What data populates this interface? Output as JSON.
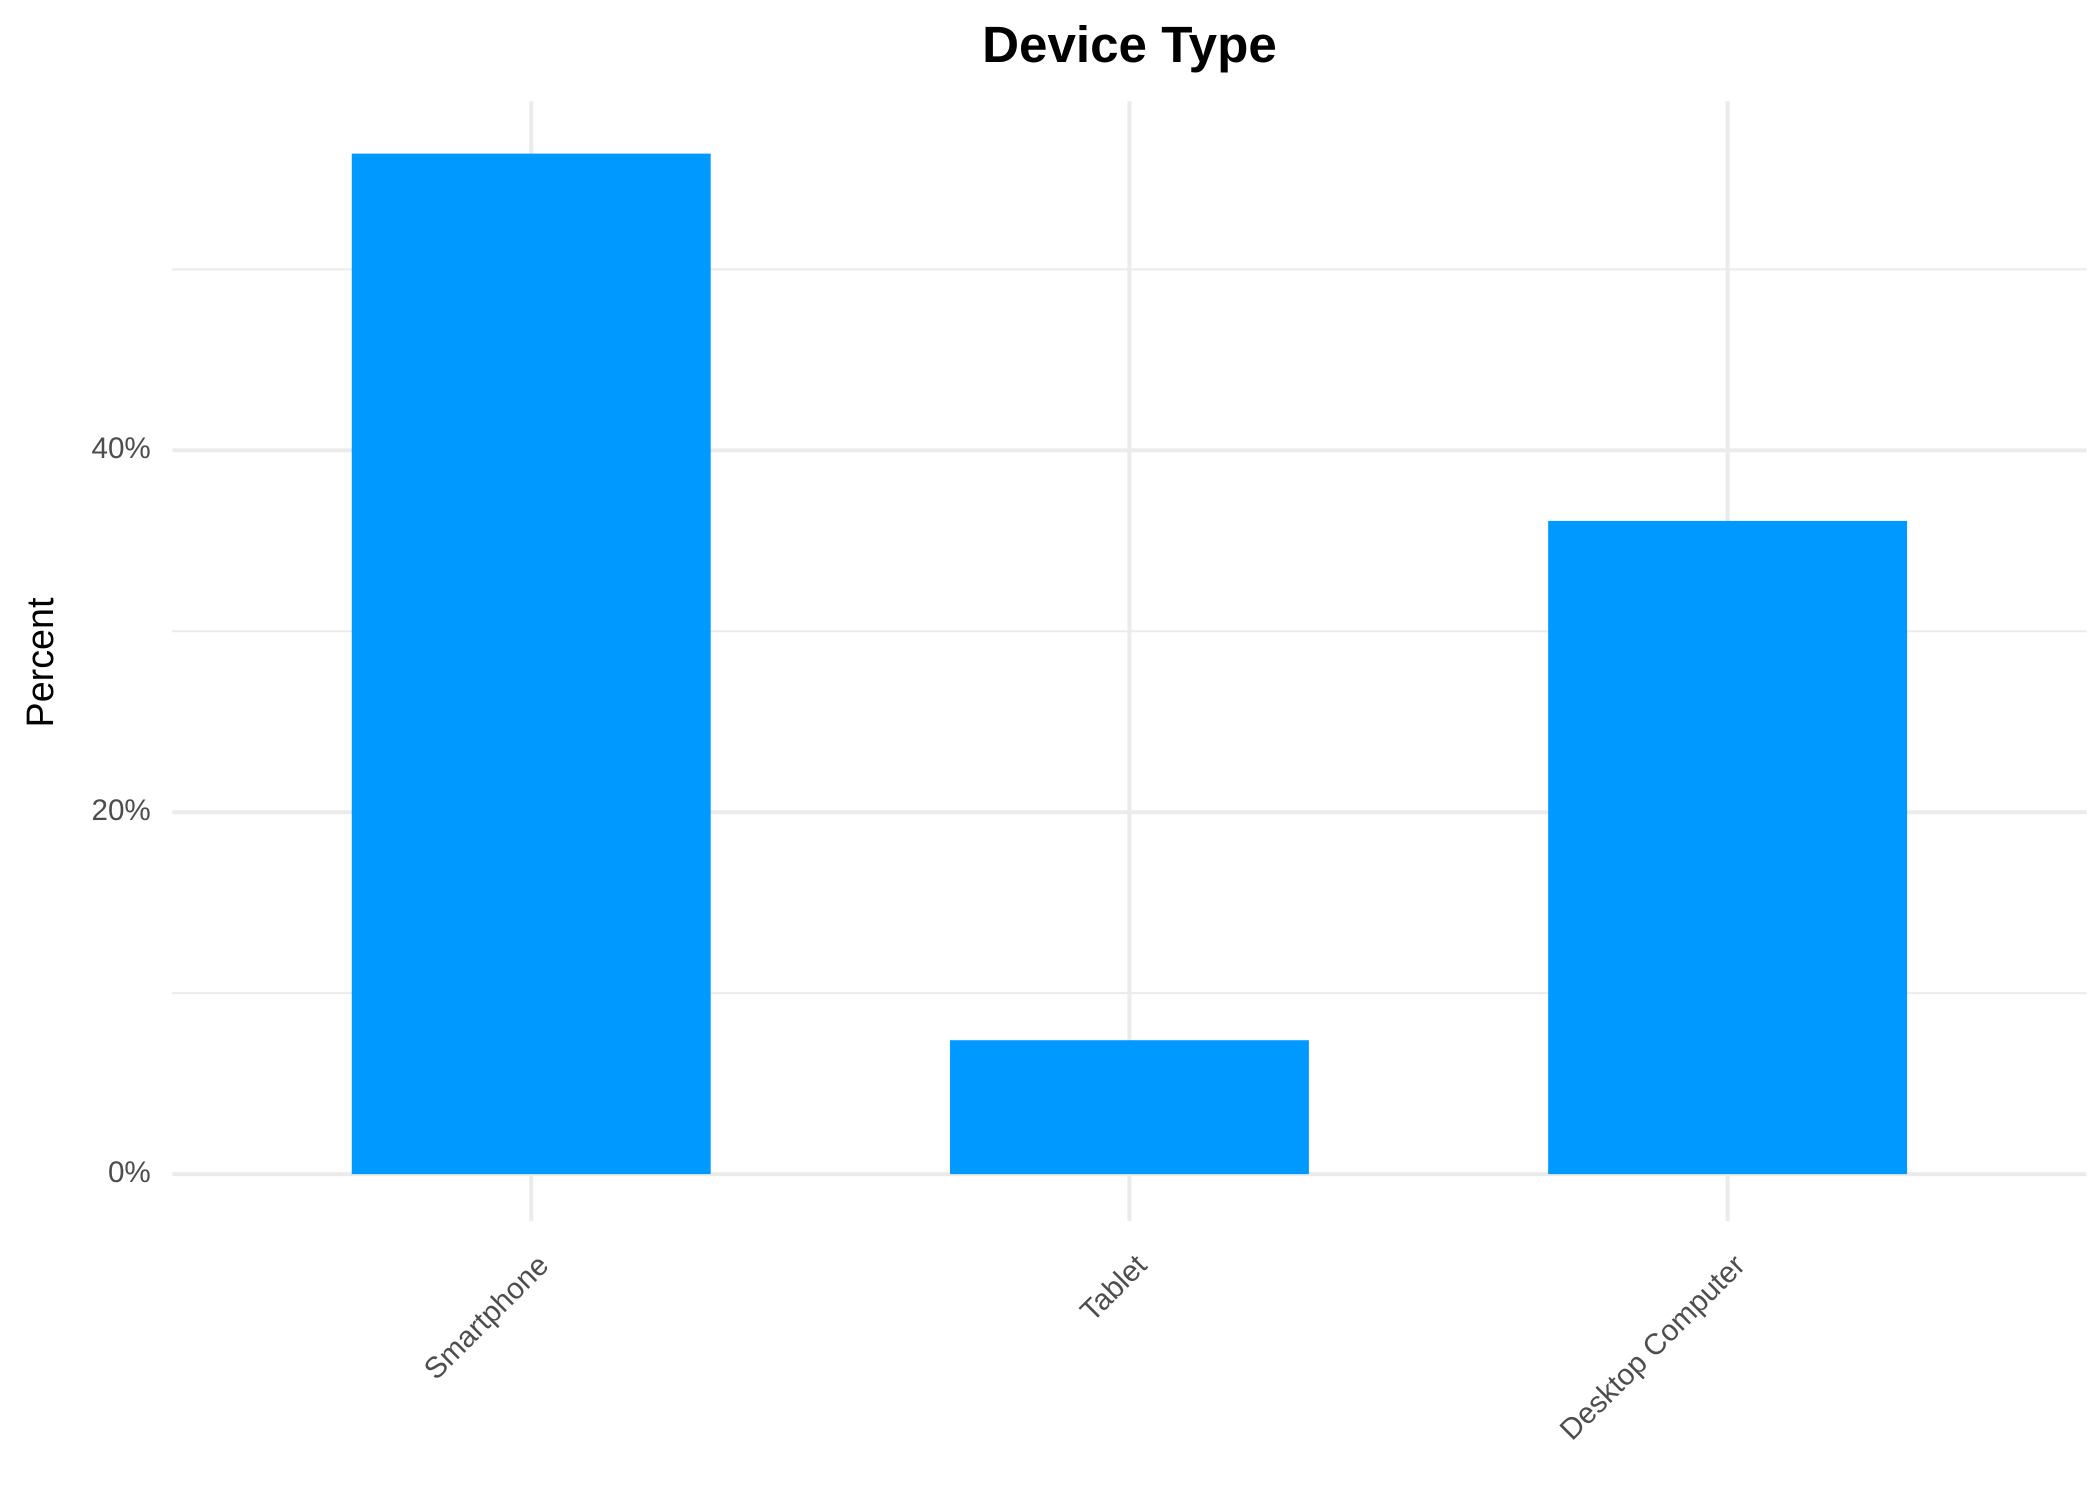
{
  "chart_data": {
    "type": "bar",
    "title": "Device Type",
    "y_label": "Percent",
    "categories": [
      "Smartphone",
      "Tablet",
      "Desktop Computer"
    ],
    "values": [
      56.4,
      7.4,
      36.1
    ],
    "color": "#0099ff",
    "ylim": [
      -2.6,
      59.3
    ],
    "yticks": [
      {
        "value": 0,
        "label": "0%"
      },
      {
        "value": 20,
        "label": "20%"
      },
      {
        "value": 40,
        "label": "40%"
      }
    ],
    "minor_yticks": [
      10,
      30,
      50
    ],
    "grid": true
  }
}
